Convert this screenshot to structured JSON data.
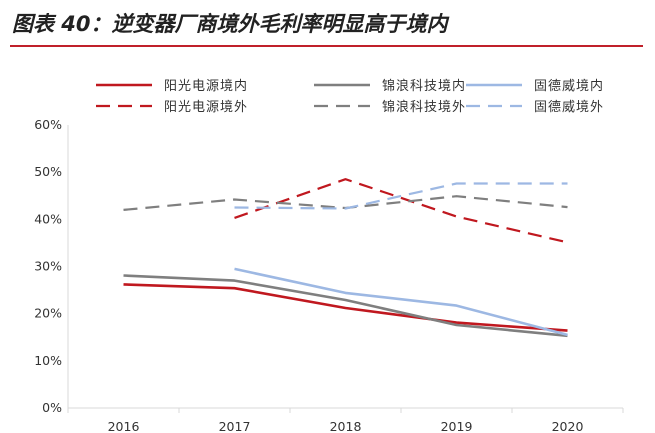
{
  "title": "图表 40：逆变器厂商境外毛利率明显高于境内",
  "chart_data": {
    "type": "line",
    "categories": [
      "2016",
      "2017",
      "2018",
      "2019",
      "2020"
    ],
    "ylim": [
      0,
      60
    ],
    "yticks": [
      "0%",
      "10%",
      "20%",
      "30%",
      "40%",
      "50%",
      "60%"
    ],
    "grid": false,
    "legend_position": "top",
    "series": [
      {
        "name": "阳光电源境内",
        "color": "#c0181f",
        "dash": false,
        "values": [
          26.2,
          25.4,
          21.2,
          18.1,
          16.4
        ]
      },
      {
        "name": "锦浪科技境内",
        "color": "#7f7f7f",
        "dash": false,
        "values": [
          28.1,
          27.0,
          22.9,
          17.6,
          15.3
        ]
      },
      {
        "name": "固德威境内",
        "color": "#9db8e3",
        "dash": false,
        "values": [
          null,
          29.5,
          24.4,
          21.7,
          15.5
        ]
      },
      {
        "name": "阳光电源境外",
        "color": "#c0181f",
        "dash": true,
        "values": [
          null,
          40.3,
          48.5,
          40.6,
          35.1
        ]
      },
      {
        "name": "锦浪科技境外",
        "color": "#7f7f7f",
        "dash": true,
        "values": [
          42.0,
          44.2,
          42.4,
          44.9,
          42.6
        ]
      },
      {
        "name": "固德威境外",
        "color": "#9db8e3",
        "dash": true,
        "values": [
          null,
          42.5,
          42.3,
          47.6,
          47.6
        ]
      }
    ]
  }
}
